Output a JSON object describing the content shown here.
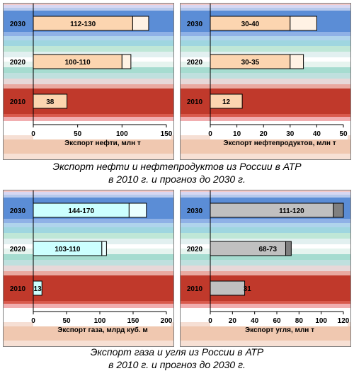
{
  "chart_data": [
    {
      "type": "bar",
      "orientation": "horizontal",
      "categories": [
        "2030",
        "2020",
        "2010"
      ],
      "values": [
        130,
        110,
        38
      ],
      "ranges": [
        [
          112,
          130
        ],
        [
          100,
          110
        ],
        [
          38,
          38
        ]
      ],
      "labels": [
        "112-130",
        "100-110",
        "38"
      ],
      "bar_color": "#fcd5b0",
      "range_color": "#fff2e4",
      "xlabel": "Экспорт нефти, млн т",
      "xlim": [
        0,
        150
      ],
      "xticks": [
        "0",
        "50",
        "100",
        "150"
      ]
    },
    {
      "type": "bar",
      "orientation": "horizontal",
      "categories": [
        "2030",
        "2020",
        "2010"
      ],
      "values": [
        40,
        35,
        12
      ],
      "ranges": [
        [
          30,
          40
        ],
        [
          30,
          35
        ],
        [
          12,
          12
        ]
      ],
      "labels": [
        "30-40",
        "30-35",
        "12"
      ],
      "bar_color": "#fcd5b0",
      "range_color": "#fff2e4",
      "xlabel": "Экспорт нефтепродуктов, млн т",
      "xlim": [
        0,
        50
      ],
      "xticks": [
        "0",
        "10",
        "20",
        "30",
        "40",
        "50"
      ]
    },
    {
      "type": "bar",
      "orientation": "horizontal",
      "categories": [
        "2030",
        "2020",
        "2010"
      ],
      "values": [
        170,
        110,
        13
      ],
      "ranges": [
        [
          144,
          170
        ],
        [
          103,
          110
        ],
        [
          13,
          13
        ]
      ],
      "labels": [
        "144-170",
        "103-110",
        "13"
      ],
      "bar_color": "#ccffff",
      "range_color": "#eaffff",
      "xlabel": "Экспорт газа, млрд куб. м",
      "xlim": [
        0,
        200
      ],
      "xticks": [
        "0",
        "50",
        "100",
        "150",
        "200"
      ]
    },
    {
      "type": "bar",
      "orientation": "horizontal",
      "categories": [
        "2030",
        "2020",
        "2010"
      ],
      "values": [
        120,
        73,
        31
      ],
      "ranges": [
        [
          111,
          120
        ],
        [
          68,
          73
        ],
        [
          31,
          31
        ]
      ],
      "labels": [
        "111-120",
        "68-73",
        "31"
      ],
      "bar_color": "#c0c0c0",
      "range_color": "#808080",
      "xlabel": "Экспорт угля, млн т",
      "xlim": [
        0,
        120
      ],
      "xticks": [
        "0",
        "20",
        "40",
        "60",
        "80",
        "100",
        "120"
      ]
    }
  ],
  "captions": {
    "top_line1": "Экспорт нефти и нефтепродуктов из России в АТР",
    "top_line2": "в 2010 г. и прогноз до 2030 г.",
    "bottom_line1": "Экспорт газа и угля из России в АТР",
    "bottom_line2": "в 2010 г. и прогноз до 2030 г."
  },
  "colors": {
    "band_2030": "#5b8dd6",
    "band_2020": "#a6dcd0",
    "band_2010": "#c0392b",
    "band_footer": "#f0c8b0",
    "bar_outline": "#000000"
  }
}
